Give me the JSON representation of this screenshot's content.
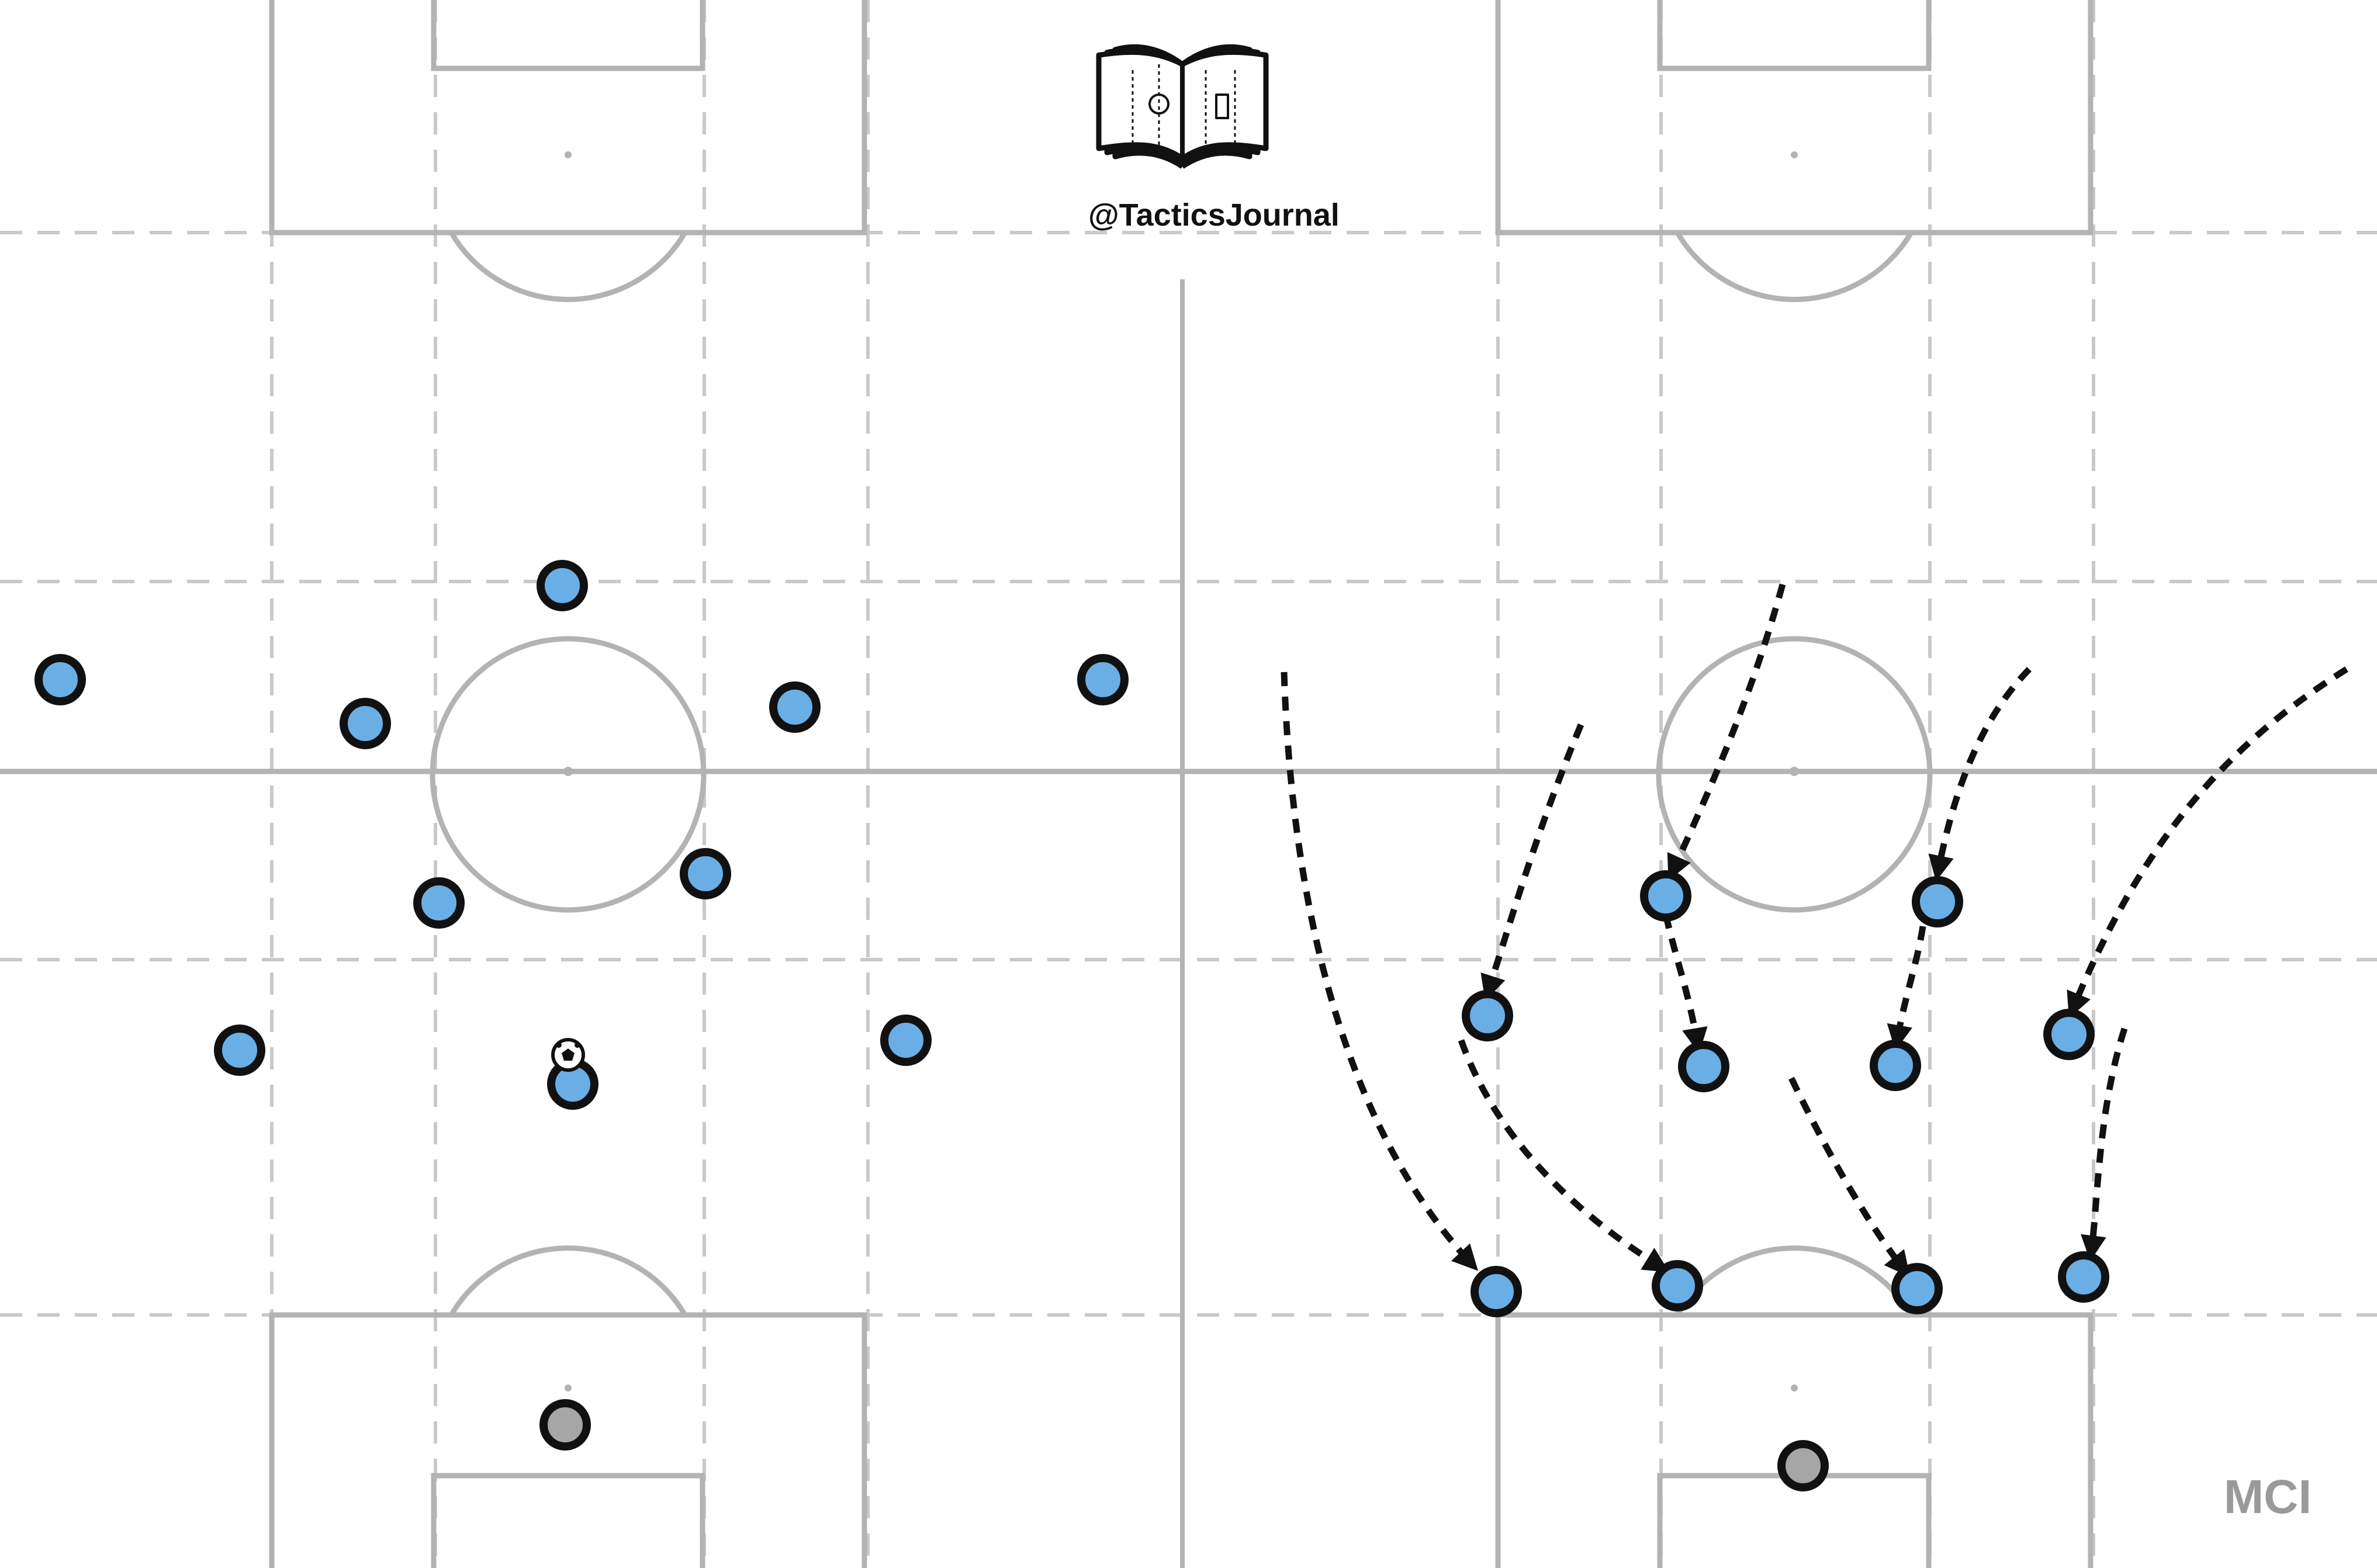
{
  "branding": {
    "handle": "@TacticsJournal",
    "logo_icon": "book-with-pitch-icon"
  },
  "team_label": "MCI",
  "colors": {
    "pitch_line": "#b3b3b3",
    "zone_line": "#c9c9c9",
    "player_fill": "#6aaee6",
    "goalkeeper_fill": "#a6a6a6",
    "outline": "#111111",
    "arrow": "#111111",
    "team_label": "#9a9a9a"
  },
  "icons": {
    "ball": "football-icon",
    "arrow": "dashed-movement-arrow-icon"
  },
  "panels": [
    {
      "name": "in-possession-shape",
      "players": 11,
      "goalkeepers": 1,
      "movement_arrows": 0,
      "has_ball": true
    },
    {
      "name": "out-of-possession-shape",
      "players": 11,
      "goalkeepers": 1,
      "movement_arrows": 10,
      "has_ball": false
    }
  ]
}
